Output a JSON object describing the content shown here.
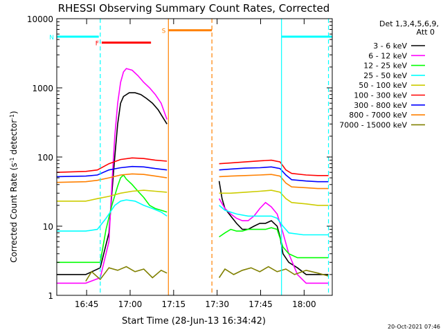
{
  "chart_data": {
    "type": "line",
    "title": "RHESSI Observing Summary Count Rates, Corrected",
    "xlabel": "Start Time (28-Jun-13 16:34:42)",
    "ylabel_main": "Corrected Count Rate (s",
    "ylabel_sup1": "-1",
    "ylabel_mid": " detector",
    "ylabel_sup2": "-1",
    "ylabel_end": ")",
    "x_unit": "minutes after 16:34:42",
    "xlim": [
      0,
      95
    ],
    "ylim": [
      1,
      10000
    ],
    "yscale": "log",
    "x_ticks": [
      {
        "label": "16:45",
        "value": 10.3
      },
      {
        "label": "17:00",
        "value": 25.3
      },
      {
        "label": "17:15",
        "value": 40.3
      },
      {
        "label": "17:30",
        "value": 55.3
      },
      {
        "label": "17:45",
        "value": 70.3
      },
      {
        "label": "18:00",
        "value": 85.3
      }
    ],
    "y_ticks": [
      {
        "label": "1",
        "value": 1
      },
      {
        "label": "10",
        "value": 10
      },
      {
        "label": "100",
        "value": 100
      },
      {
        "label": "1000",
        "value": 1000
      },
      {
        "label": "10000",
        "value": 10000
      }
    ],
    "legend_header": [
      "Det 1,3,4,5,6,9,",
      "Att 0"
    ],
    "timestamp": "20-Oct-2021 07:46",
    "flags": [
      {
        "label": "N",
        "color": "#00ffff",
        "level": 5500,
        "segments": [
          [
            0,
            14.5
          ],
          [
            77.5,
            95
          ]
        ]
      },
      {
        "label": "F",
        "color": "#ff0000",
        "level": 4500,
        "segments": [
          [
            15.5,
            32.5
          ]
        ]
      },
      {
        "label": "S",
        "color": "#ff8000",
        "level": 6800,
        "segments": [
          [
            38.5,
            53.5
          ]
        ]
      }
    ],
    "vlines": [
      {
        "x": 15,
        "color": "#00ffff",
        "style": "dashed"
      },
      {
        "x": 77.5,
        "color": "#00ffff",
        "style": "solid"
      },
      {
        "x": 93.7,
        "color": "#00ffff",
        "style": "dashed"
      },
      {
        "x": 38.5,
        "color": "#ff8000",
        "style": "solid"
      },
      {
        "x": 53.5,
        "color": "#ff8000",
        "style": "dashed"
      }
    ],
    "series": [
      {
        "name": "3 - 6 keV",
        "color": "#000000",
        "points": [
          [
            0,
            2
          ],
          [
            10,
            2
          ],
          [
            15,
            2.5
          ],
          [
            18,
            8
          ],
          [
            19,
            30
          ],
          [
            20,
            100
          ],
          [
            21,
            300
          ],
          [
            22,
            600
          ],
          [
            23,
            750
          ],
          [
            25,
            850
          ],
          [
            27,
            850
          ],
          [
            29,
            800
          ],
          [
            31,
            700
          ],
          [
            33,
            600
          ],
          [
            35,
            480
          ],
          [
            37,
            350
          ],
          [
            38,
            300
          ]
        ],
        "points2": [
          [
            56,
            45
          ],
          [
            57,
            25
          ],
          [
            58,
            18
          ],
          [
            60,
            14
          ],
          [
            62,
            11
          ],
          [
            64,
            9
          ],
          [
            66,
            9
          ],
          [
            68,
            10
          ],
          [
            70,
            11
          ],
          [
            72,
            11
          ],
          [
            74,
            12
          ],
          [
            76,
            10
          ],
          [
            77,
            7
          ],
          [
            78,
            4
          ],
          [
            80,
            3
          ],
          [
            83,
            2.5
          ],
          [
            86,
            2
          ],
          [
            90,
            2
          ],
          [
            93.7,
            2
          ]
        ]
      },
      {
        "name": "6 - 12 keV",
        "color": "#ff00ff",
        "points": [
          [
            0,
            1.5
          ],
          [
            10,
            1.5
          ],
          [
            15,
            1.8
          ],
          [
            18,
            6
          ],
          [
            19,
            40
          ],
          [
            20,
            200
          ],
          [
            21,
            600
          ],
          [
            22,
            1200
          ],
          [
            23,
            1700
          ],
          [
            24,
            1900
          ],
          [
            26,
            1800
          ],
          [
            28,
            1500
          ],
          [
            30,
            1200
          ],
          [
            32,
            1000
          ],
          [
            34,
            800
          ],
          [
            36,
            600
          ],
          [
            38,
            350
          ]
        ],
        "points2": [
          [
            56,
            25
          ],
          [
            58,
            18
          ],
          [
            60,
            15
          ],
          [
            62,
            13
          ],
          [
            64,
            12
          ],
          [
            66,
            12
          ],
          [
            68,
            14
          ],
          [
            70,
            18
          ],
          [
            72,
            22
          ],
          [
            74,
            19
          ],
          [
            76,
            15
          ],
          [
            78,
            8
          ],
          [
            80,
            4
          ],
          [
            83,
            2
          ],
          [
            86,
            1.5
          ],
          [
            90,
            1.5
          ],
          [
            93.7,
            1.5
          ]
        ]
      },
      {
        "name": "12 - 25 keV",
        "color": "#00ff00",
        "points": [
          [
            0,
            3
          ],
          [
            10,
            3
          ],
          [
            15,
            3
          ],
          [
            17,
            9
          ],
          [
            19,
            20
          ],
          [
            21,
            38
          ],
          [
            22,
            50
          ],
          [
            23,
            55
          ],
          [
            24,
            48
          ],
          [
            26,
            40
          ],
          [
            28,
            32
          ],
          [
            30,
            26
          ],
          [
            32,
            20
          ],
          [
            34,
            18
          ],
          [
            36,
            17
          ],
          [
            38,
            16
          ]
        ],
        "points2": [
          [
            56,
            7
          ],
          [
            58,
            8
          ],
          [
            60,
            9
          ],
          [
            62,
            8.5
          ],
          [
            64,
            8.5
          ],
          [
            66,
            9
          ],
          [
            68,
            9
          ],
          [
            70,
            9
          ],
          [
            72,
            9
          ],
          [
            74,
            9.5
          ],
          [
            76,
            9
          ],
          [
            78,
            5
          ],
          [
            80,
            4
          ],
          [
            83,
            3.5
          ],
          [
            86,
            3.5
          ],
          [
            90,
            3.5
          ],
          [
            93.7,
            3.5
          ]
        ]
      },
      {
        "name": "25 - 50 keV",
        "color": "#00ffff",
        "points": [
          [
            0,
            8.5
          ],
          [
            10,
            8.5
          ],
          [
            14,
            9
          ],
          [
            17,
            13
          ],
          [
            20,
            20
          ],
          [
            22,
            23
          ],
          [
            24,
            24
          ],
          [
            27,
            23
          ],
          [
            30,
            20
          ],
          [
            33,
            18
          ],
          [
            36,
            16
          ],
          [
            38,
            14
          ]
        ],
        "points2": [
          [
            56,
            20
          ],
          [
            58,
            17
          ],
          [
            62,
            15
          ],
          [
            66,
            14
          ],
          [
            70,
            14
          ],
          [
            74,
            14
          ],
          [
            76,
            13
          ],
          [
            78,
            10
          ],
          [
            80,
            8
          ],
          [
            85,
            7.5
          ],
          [
            90,
            7.5
          ],
          [
            93.7,
            7.5
          ]
        ]
      },
      {
        "name": "50 - 100 keV",
        "color": "#cccc00",
        "points": [
          [
            0,
            23
          ],
          [
            10,
            23
          ],
          [
            14,
            25
          ],
          [
            18,
            27
          ],
          [
            22,
            30
          ],
          [
            26,
            32
          ],
          [
            30,
            33
          ],
          [
            34,
            32
          ],
          [
            38,
            31
          ]
        ],
        "points2": [
          [
            56,
            30
          ],
          [
            60,
            30
          ],
          [
            65,
            31
          ],
          [
            70,
            32
          ],
          [
            74,
            33
          ],
          [
            77,
            31
          ],
          [
            79,
            25
          ],
          [
            81,
            22
          ],
          [
            86,
            21
          ],
          [
            90,
            20
          ],
          [
            93.7,
            20
          ]
        ]
      },
      {
        "name": "100 - 300 keV",
        "color": "#ff0000",
        "points": [
          [
            0,
            60
          ],
          [
            10,
            62
          ],
          [
            14,
            65
          ],
          [
            18,
            80
          ],
          [
            22,
            92
          ],
          [
            26,
            97
          ],
          [
            30,
            95
          ],
          [
            34,
            90
          ],
          [
            38,
            87
          ]
        ],
        "points2": [
          [
            56,
            80
          ],
          [
            60,
            82
          ],
          [
            65,
            85
          ],
          [
            70,
            88
          ],
          [
            74,
            90
          ],
          [
            77,
            85
          ],
          [
            79,
            65
          ],
          [
            81,
            58
          ],
          [
            86,
            55
          ],
          [
            90,
            54
          ],
          [
            93.7,
            54
          ]
        ]
      },
      {
        "name": "300 - 800 keV",
        "color": "#0000ff",
        "points": [
          [
            0,
            52
          ],
          [
            10,
            53
          ],
          [
            14,
            55
          ],
          [
            18,
            65
          ],
          [
            22,
            70
          ],
          [
            26,
            73
          ],
          [
            30,
            72
          ],
          [
            34,
            68
          ],
          [
            38,
            65
          ]
        ],
        "points2": [
          [
            56,
            65
          ],
          [
            60,
            67
          ],
          [
            65,
            69
          ],
          [
            70,
            70
          ],
          [
            74,
            72
          ],
          [
            77,
            68
          ],
          [
            79,
            55
          ],
          [
            81,
            47
          ],
          [
            86,
            45
          ],
          [
            90,
            44
          ],
          [
            93.7,
            44
          ]
        ]
      },
      {
        "name": "800 - 7000 keV",
        "color": "#ff8000",
        "points": [
          [
            0,
            43
          ],
          [
            10,
            44
          ],
          [
            14,
            46
          ],
          [
            18,
            50
          ],
          [
            22,
            55
          ],
          [
            26,
            57
          ],
          [
            30,
            56
          ],
          [
            34,
            53
          ],
          [
            38,
            50
          ]
        ],
        "points2": [
          [
            56,
            52
          ],
          [
            60,
            53
          ],
          [
            65,
            54
          ],
          [
            70,
            55
          ],
          [
            74,
            56
          ],
          [
            77,
            53
          ],
          [
            79,
            42
          ],
          [
            81,
            37
          ],
          [
            86,
            36
          ],
          [
            90,
            35
          ],
          [
            93.7,
            35
          ]
        ]
      },
      {
        "name": "7000 - 15000 keV",
        "color": "#808000",
        "points": [
          [
            10,
            1.6
          ],
          [
            12,
            2.2
          ],
          [
            15,
            1.7
          ],
          [
            18,
            2.5
          ],
          [
            21,
            2.3
          ],
          [
            24,
            2.6
          ],
          [
            27,
            2.2
          ],
          [
            30,
            2.4
          ],
          [
            33,
            1.8
          ],
          [
            36,
            2.3
          ],
          [
            38,
            2.1
          ]
        ],
        "points2": [
          [
            56,
            1.8
          ],
          [
            58,
            2.4
          ],
          [
            61,
            2
          ],
          [
            64,
            2.3
          ],
          [
            67,
            2.5
          ],
          [
            70,
            2.2
          ],
          [
            73,
            2.6
          ],
          [
            76,
            2.2
          ],
          [
            79,
            2.4
          ],
          [
            82,
            2
          ],
          [
            86,
            2.3
          ],
          [
            90,
            2.1
          ],
          [
            93.7,
            1.9
          ]
        ]
      }
    ]
  }
}
